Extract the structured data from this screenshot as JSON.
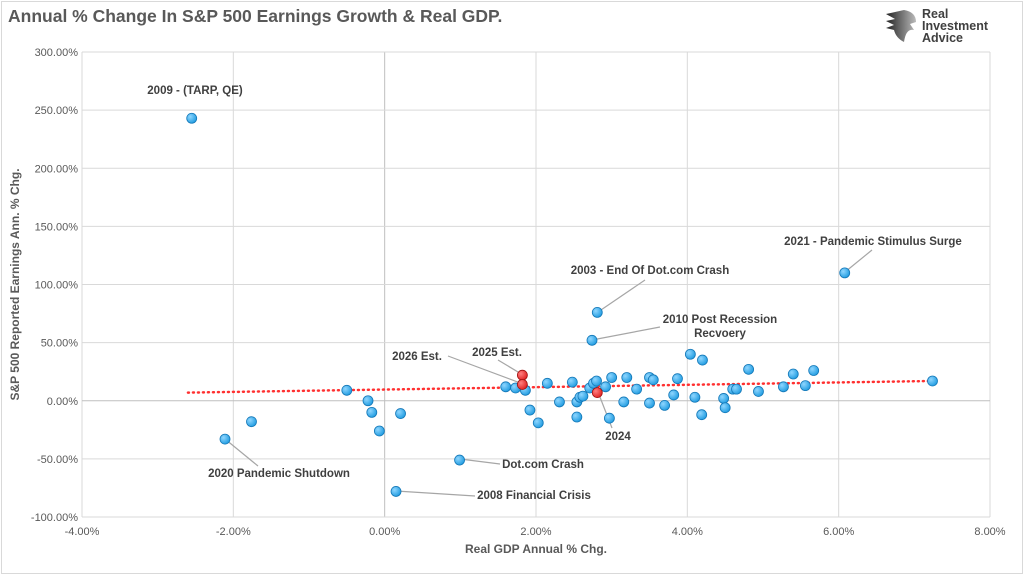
{
  "chart_data": {
    "type": "scatter",
    "title": "Annual % Change In S&P 500 Earnings Growth & Real GDP.",
    "xlabel": "Real GDP Annual % Chg.",
    "ylabel": "S&P 500 Reported Earnings Ann. % Chg.",
    "xlim": [
      -4,
      8
    ],
    "ylim": [
      -100,
      300
    ],
    "x_ticks": [
      -4,
      -2,
      0,
      2,
      4,
      6,
      8
    ],
    "x_tick_labels": [
      "-4.00%",
      "-2.00%",
      "0.00%",
      "2.00%",
      "4.00%",
      "6.00%",
      "8.00%"
    ],
    "y_ticks": [
      -100,
      -50,
      0,
      50,
      100,
      150,
      200,
      250,
      300
    ],
    "y_tick_labels": [
      "-100.00%",
      "-50.00%",
      "0.00%",
      "50.00%",
      "100.00%",
      "150.00%",
      "200.00%",
      "250.00%",
      "300.00%"
    ],
    "grid": true,
    "colors": {
      "point": "#1e9be0",
      "estimate": "#e02020",
      "trend": "#ff3030"
    },
    "points": [
      [
        -2.55,
        243
      ],
      [
        -2.11,
        -33
      ],
      [
        -1.76,
        -18
      ],
      [
        -0.5,
        9
      ],
      [
        -0.22,
        0
      ],
      [
        -0.17,
        -10
      ],
      [
        -0.07,
        -26
      ],
      [
        0.21,
        -11
      ],
      [
        0.15,
        -78
      ],
      [
        0.99,
        -51
      ],
      [
        1.6,
        12
      ],
      [
        1.73,
        11
      ],
      [
        1.86,
        9
      ],
      [
        1.92,
        -8
      ],
      [
        2.03,
        -19
      ],
      [
        2.15,
        15
      ],
      [
        2.31,
        -1
      ],
      [
        2.48,
        16
      ],
      [
        2.54,
        -1
      ],
      [
        2.58,
        3
      ],
      [
        2.62,
        4
      ],
      [
        2.54,
        -14
      ],
      [
        2.71,
        11
      ],
      [
        2.76,
        15
      ],
      [
        2.8,
        17
      ],
      [
        2.81,
        76
      ],
      [
        2.74,
        52
      ],
      [
        2.92,
        12
      ],
      [
        3.0,
        20
      ],
      [
        2.97,
        -15
      ],
      [
        3.16,
        -1
      ],
      [
        3.2,
        20
      ],
      [
        3.33,
        10
      ],
      [
        3.5,
        20
      ],
      [
        3.55,
        18
      ],
      [
        3.5,
        -2
      ],
      [
        3.7,
        -4
      ],
      [
        3.82,
        5
      ],
      [
        3.87,
        19
      ],
      [
        4.04,
        40
      ],
      [
        4.2,
        35
      ],
      [
        4.1,
        3
      ],
      [
        4.19,
        -12
      ],
      [
        4.48,
        2
      ],
      [
        4.5,
        -6
      ],
      [
        4.6,
        10
      ],
      [
        4.65,
        10
      ],
      [
        4.81,
        27
      ],
      [
        4.94,
        8
      ],
      [
        5.27,
        12
      ],
      [
        5.4,
        23
      ],
      [
        5.56,
        13
      ],
      [
        5.67,
        26
      ],
      [
        6.08,
        110
      ],
      [
        7.24,
        17
      ]
    ],
    "estimate_points": [
      [
        1.82,
        22
      ],
      [
        1.82,
        14
      ],
      [
        2.81,
        7
      ]
    ],
    "trendline": {
      "x": [
        -2.6,
        7.24
      ],
      "y": [
        7,
        17
      ]
    },
    "annotations": [
      {
        "text": "2009 - (TARP, QE)",
        "x": -2.55,
        "y": 243
      },
      {
        "text": "2021 - Pandemic Stimulus Surge",
        "x": 6.08,
        "y": 110
      },
      {
        "text": "2003 - End Of Dot.com Crash",
        "x": 2.81,
        "y": 76
      },
      {
        "text": "2010 Post Recession",
        "text2": "Recvoery",
        "x": 2.74,
        "y": 52
      },
      {
        "text": "2026 Est.",
        "x": 1.82,
        "y": 14
      },
      {
        "text": "2025 Est.",
        "x": 1.82,
        "y": 22
      },
      {
        "text": "2024",
        "x": 2.81,
        "y": 7
      },
      {
        "text": "2020 Pandemic Shutdown",
        "x": -2.11,
        "y": -33
      },
      {
        "text": "Dot.com Crash",
        "x": 0.99,
        "y": -51
      },
      {
        "text": "2008 Financial Crisis",
        "x": 0.15,
        "y": -78
      }
    ]
  },
  "logo": {
    "line1": "Real",
    "line2": "Investment",
    "line3": "Advice"
  }
}
